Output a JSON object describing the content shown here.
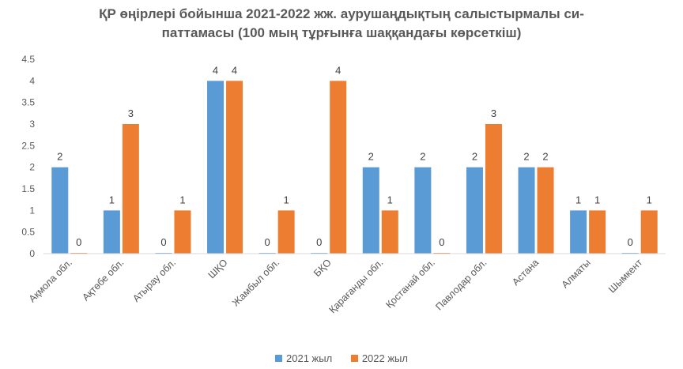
{
  "chart_data": {
    "type": "bar",
    "title_line1": "ҚР өңірлері бойынша 2021-2022 жж. аурушаңдықтың салыстырмалы си-",
    "title_line2": "паттамасы (100 мың тұрғынға шаққандағы көрсеткіш)",
    "categories": [
      "Ақмола обл.",
      "Ақтөбе обл.",
      "Атырау обл.",
      "ШҚО",
      "Жамбыл обл.",
      "БҚО",
      "Қарағанды обл.",
      "Қостанай обл.",
      "Павлодар обл.",
      "Астана",
      "Алматы",
      "Шымкент"
    ],
    "series": [
      {
        "name": "2021 жыл",
        "color": "#5B9BD5",
        "values": [
          2,
          1,
          0,
          4,
          0,
          0,
          2,
          2,
          2,
          2,
          1,
          0
        ]
      },
      {
        "name": "2022 жыл",
        "color": "#ED7D31",
        "values": [
          0,
          3,
          1,
          4,
          1,
          4,
          1,
          0,
          3,
          2,
          1,
          1
        ]
      }
    ],
    "yticks": [
      "0",
      "0.5",
      "1",
      "1.5",
      "2",
      "2.5",
      "3",
      "3.5",
      "4",
      "4.5"
    ],
    "ylim": [
      0,
      4.5
    ],
    "grid": false,
    "legend_position": "bottom"
  }
}
